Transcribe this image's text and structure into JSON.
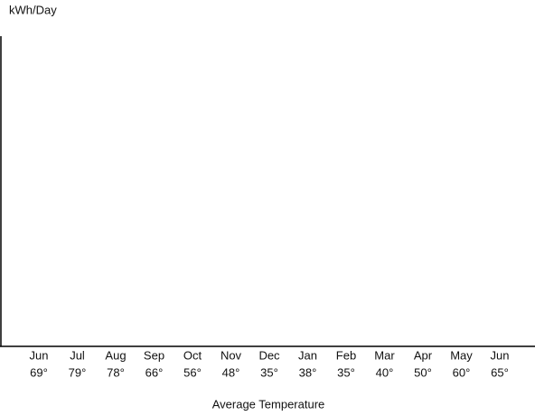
{
  "chart_data": {
    "type": "bar",
    "y_label": "kWh/Day",
    "x_label": "Average Temperature",
    "categories": [
      "Jun",
      "Jul",
      "Aug",
      "Sep",
      "Oct",
      "Nov",
      "Dec",
      "Jan",
      "Feb",
      "Mar",
      "Apr",
      "May",
      "Jun"
    ],
    "temperatures": [
      "69°",
      "79°",
      "78°",
      "66°",
      "56°",
      "48°",
      "35°",
      "38°",
      "35°",
      "40°",
      "50°",
      "60°",
      "65°"
    ]
  }
}
